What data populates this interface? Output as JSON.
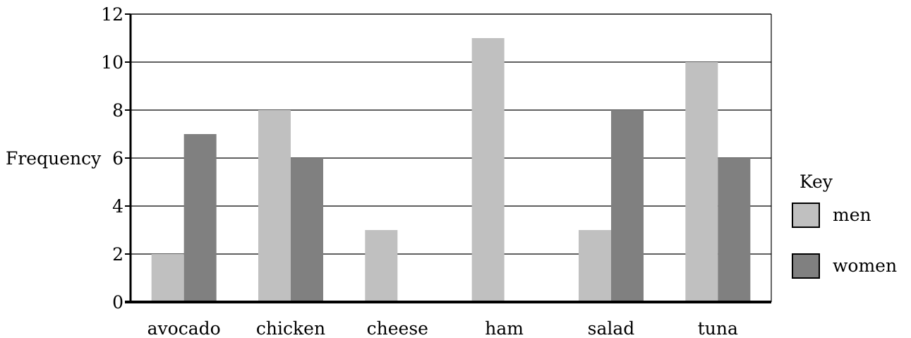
{
  "chart_data": {
    "type": "bar",
    "categories": [
      "avocado",
      "chicken",
      "cheese",
      "ham",
      "salad",
      "tuna"
    ],
    "series": [
      {
        "name": "men",
        "values": [
          2,
          8,
          3,
          11,
          3,
          10
        ],
        "color": "#c0c0c0"
      },
      {
        "name": "women",
        "values": [
          7,
          6,
          0,
          0,
          8,
          6
        ],
        "color": "#808080"
      }
    ],
    "ylabel": "Frequency",
    "xlabel": "",
    "ylim": [
      0,
      12
    ],
    "yticks": [
      "0",
      "2",
      "4",
      "6",
      "8",
      "10",
      "12"
    ],
    "grid": true,
    "legend": {
      "title": "Key",
      "placement": "right"
    }
  }
}
